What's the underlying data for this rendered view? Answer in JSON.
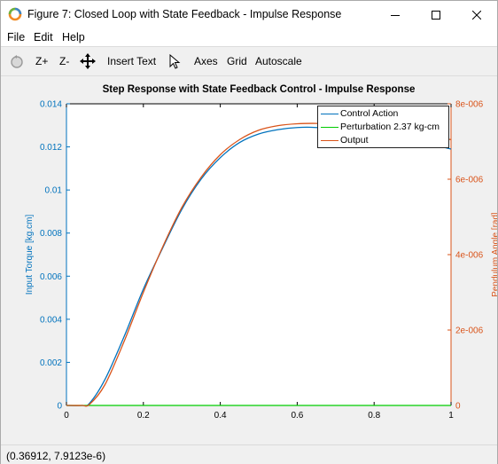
{
  "window": {
    "title": "Figure 7: Closed Loop with State Feedback - Impulse Response"
  },
  "menu": {
    "file": "File",
    "edit": "Edit",
    "help": "Help"
  },
  "toolbar": {
    "zoom_in": "Z+",
    "zoom_out": "Z-",
    "insert_text": "Insert Text",
    "axes": "Axes",
    "grid": "Grid",
    "autoscale": "Autoscale"
  },
  "status": {
    "coordinates": "(0.36912, 7.9123e-6)"
  },
  "chart_data": {
    "type": "line",
    "title": "Step Response with State Feedback Control - Impulse Response",
    "xlabel": "",
    "ylabel_left": "Input Torque [kg.cm]",
    "ylabel_right": "Pendulum Angle [rad]",
    "xlim": [
      0,
      1
    ],
    "ylim_left": [
      0,
      0.014
    ],
    "ylim_right": [
      0,
      8e-06
    ],
    "xticks": [
      "0",
      "0.2",
      "0.4",
      "0.6",
      "0.8",
      "1"
    ],
    "yticks_left": [
      "0",
      "0.002",
      "0.004",
      "0.006",
      "0.008",
      "0.01",
      "0.012",
      "0.014"
    ],
    "yticks_right": [
      "0",
      "2e-006",
      "4e-006",
      "6e-006",
      "8e-006"
    ],
    "grid": false,
    "legend_position": "top-right",
    "colors": {
      "left_axis": "#0072bd",
      "right_axis": "#d95319",
      "control": "#0072bd",
      "perturbation": "#00cc00",
      "output": "#d95319"
    },
    "series": [
      {
        "name": "Control Action",
        "axis": "left",
        "x": [
          0,
          0.04,
          0.06,
          0.1,
          0.15,
          0.2,
          0.25,
          0.3,
          0.35,
          0.4,
          0.45,
          0.5,
          0.55,
          0.6,
          0.65,
          0.7,
          0.75,
          0.8,
          0.85,
          0.9,
          0.95,
          1.0
        ],
        "y": [
          0,
          0,
          0.0001,
          0.0012,
          0.0032,
          0.0054,
          0.0073,
          0.0091,
          0.0105,
          0.0115,
          0.0122,
          0.0126,
          0.0128,
          0.0129,
          0.0129,
          0.0128,
          0.0127,
          0.0126,
          0.0124,
          0.0122,
          0.0121,
          0.0119
        ]
      },
      {
        "name": "Perturbation 2.37 kg-cm",
        "axis": "left",
        "x": [
          0,
          1
        ],
        "y": [
          0,
          0
        ]
      },
      {
        "name": "Output",
        "axis": "right",
        "x": [
          0,
          0.04,
          0.06,
          0.1,
          0.15,
          0.2,
          0.25,
          0.3,
          0.35,
          0.4,
          0.45,
          0.5,
          0.55,
          0.6,
          0.65,
          0.7,
          0.75,
          0.8,
          0.85,
          0.9,
          0.95,
          1.0
        ],
        "y": [
          0,
          0,
          3e-08,
          5.5e-07,
          1.7e-06,
          3e-06,
          4.2e-06,
          5.25e-06,
          6.05e-06,
          6.65e-06,
          7.05e-06,
          7.3e-06,
          7.42e-06,
          7.47e-06,
          7.48e-06,
          7.46e-06,
          7.42e-06,
          7.36e-06,
          7.3e-06,
          7.22e-06,
          7.13e-06,
          7.05e-06
        ]
      }
    ]
  }
}
